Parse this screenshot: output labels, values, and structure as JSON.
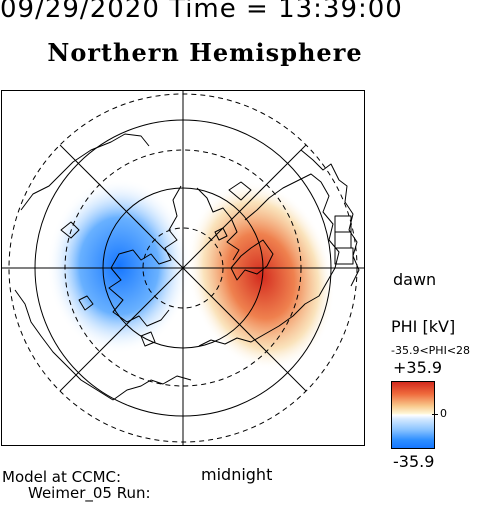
{
  "header": {
    "datetime_line": "09/29/2020 Time = 13:39:00",
    "hemisphere": "Northern Hemisphere"
  },
  "map": {
    "labels": {
      "dawn": "dawn",
      "midnight": "midnight"
    }
  },
  "model": {
    "line1": "Model at CCMC:",
    "line2": "Weimer_05 Run:"
  },
  "legend": {
    "title": "PHI [kV]",
    "range_text": "-35.9<PHI<28",
    "max": "+35.9",
    "zero": "0",
    "min": "-35.9",
    "colors": {
      "positive": "#d32a1e",
      "neutral": "#ffffff",
      "negative": "#1576ff"
    }
  }
}
